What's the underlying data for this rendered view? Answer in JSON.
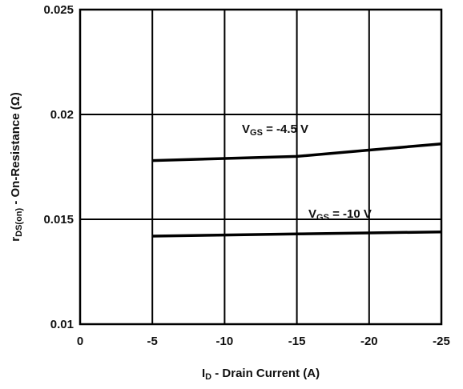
{
  "chart_data": {
    "type": "line",
    "title": "",
    "xlabel": {
      "main": "I",
      "sub": "D",
      "rest": " - Drain Current (A)"
    },
    "ylabel": {
      "main": "r",
      "sub": "DS(on)",
      "rest": " - On-Resistance (Ω)"
    },
    "xlim": [
      0,
      -25
    ],
    "ylim": [
      0.01,
      0.025
    ],
    "xticks": [
      0,
      -5,
      -10,
      -15,
      -20,
      -25
    ],
    "xtick_labels": [
      "0",
      "-5",
      "-10",
      "-15",
      "-20",
      "-25"
    ],
    "yticks": [
      0.01,
      0.015,
      0.02,
      0.025
    ],
    "ytick_labels": [
      "0.01",
      "0.015",
      "0.02",
      "0.025"
    ],
    "grid": true,
    "series": [
      {
        "x": [
          -5,
          -10,
          -15,
          -20,
          -25
        ],
        "y": [
          0.0178,
          0.0179,
          0.018,
          0.0183,
          0.0186
        ],
        "annotation": {
          "main": "V",
          "sub": "GS",
          "rest": " = -4.5 V"
        }
      },
      {
        "x": [
          -5,
          -10,
          -15,
          -20,
          -25
        ],
        "y": [
          0.0142,
          0.01425,
          0.0143,
          0.01435,
          0.0144
        ],
        "annotation": {
          "main": "V",
          "sub": "GS",
          "rest": " = -10 V"
        }
      }
    ]
  }
}
